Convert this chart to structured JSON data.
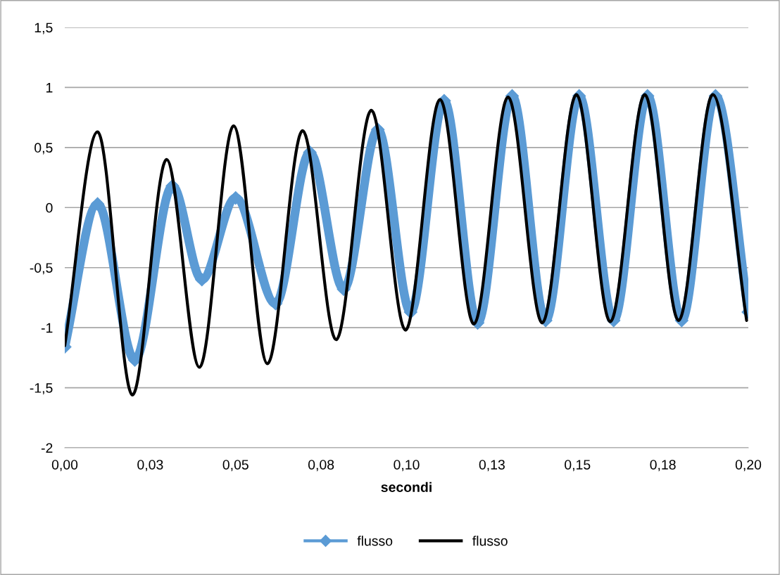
{
  "chart_data": {
    "type": "line",
    "xlabel": "secondi",
    "xlim": [
      0,
      0.2
    ],
    "ylim": [
      -2,
      1.5
    ],
    "xticks": [
      {
        "value": 0,
        "label": "0,00"
      },
      {
        "value": 0.025,
        "label": "0,03"
      },
      {
        "value": 0.05,
        "label": "0,05"
      },
      {
        "value": 0.075,
        "label": "0,08"
      },
      {
        "value": 0.1,
        "label": "0,10"
      },
      {
        "value": 0.125,
        "label": "0,13"
      },
      {
        "value": 0.15,
        "label": "0,15"
      },
      {
        "value": 0.175,
        "label": "0,18"
      },
      {
        "value": 0.2,
        "label": "0,20"
      }
    ],
    "yticks": [
      {
        "value": -2,
        "label": "-2"
      },
      {
        "value": -1.5,
        "label": "-1,5"
      },
      {
        "value": -1,
        "label": "-1"
      },
      {
        "value": -0.5,
        "label": "-0,5"
      },
      {
        "value": 0,
        "label": "0"
      },
      {
        "value": 0.5,
        "label": "0,5"
      },
      {
        "value": 1,
        "label": "1"
      },
      {
        "value": 1.5,
        "label": "1,5"
      }
    ],
    "grid": "y",
    "legend": "bottom",
    "series": [
      {
        "name": "flusso",
        "color": "#5b9bd5",
        "marker": "diamond",
        "x": [
          0,
          0.0096,
          0.0205,
          0.0315,
          0.0401,
          0.05,
          0.0617,
          0.0717,
          0.0816,
          0.0916,
          0.1012,
          0.111,
          0.1208,
          0.1309,
          0.1407,
          0.1505,
          0.1606,
          0.1705,
          0.1805,
          0.1904,
          0.2
        ],
        "values": [
          -1.16,
          0.03,
          -1.27,
          0.18,
          -0.6,
          0.08,
          -0.8,
          0.46,
          -0.68,
          0.65,
          -0.87,
          0.89,
          -0.96,
          0.93,
          -0.94,
          0.93,
          -0.94,
          0.93,
          -0.94,
          0.93,
          -0.87
        ]
      },
      {
        "name": "flusso",
        "color": "#000000",
        "marker": "none",
        "x": [
          0,
          0.0096,
          0.0198,
          0.0298,
          0.0394,
          0.0494,
          0.0593,
          0.0696,
          0.0794,
          0.0897,
          0.0997,
          0.1098,
          0.1197,
          0.1297,
          0.1397,
          0.1497,
          0.1596,
          0.1697,
          0.1796,
          0.1896,
          0.1995
        ],
        "values": [
          -1.15,
          0.63,
          -1.56,
          0.4,
          -1.33,
          0.68,
          -1.3,
          0.64,
          -1.1,
          0.81,
          -1.02,
          0.9,
          -0.97,
          0.92,
          -0.96,
          0.94,
          -0.95,
          0.94,
          -0.94,
          0.94,
          -0.94
        ]
      }
    ]
  }
}
